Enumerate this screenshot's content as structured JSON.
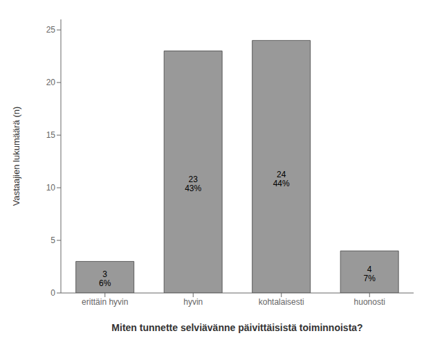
{
  "chart_data": {
    "type": "bar",
    "categories": [
      "erittäin hyvin",
      "hyvin",
      "kohtalaisesti",
      "huonosti"
    ],
    "values": [
      3,
      23,
      24,
      4
    ],
    "value_labels": [
      "3\n6%",
      "23\n43%",
      "24\n44%",
      "4\n7%"
    ],
    "data_labels": true,
    "color": "#999999",
    "xlabel": "Miten tunnette selviävänne päivittäisistä toiminnoista?",
    "ylabel": "Vastaajien lukumäärä (n)",
    "ylim": [
      0,
      26
    ],
    "yticks": [
      0,
      5,
      10,
      15,
      20,
      25
    ],
    "grid": false
  }
}
